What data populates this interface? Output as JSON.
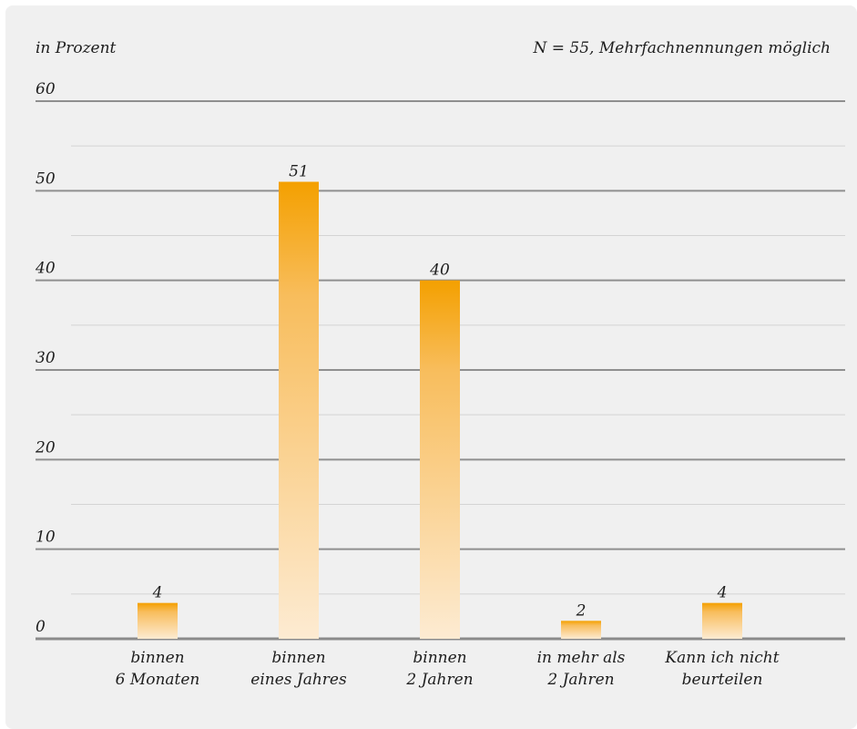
{
  "chart_data": {
    "type": "bar",
    "unit_label": "in Prozent",
    "note": "N = 55, Mehrfachnennungen möglich",
    "ylim": [
      0,
      60
    ],
    "yticks": [
      "0",
      "10",
      "20",
      "30",
      "40",
      "50",
      "60"
    ],
    "grid": true,
    "categories": [
      [
        "binnen",
        "6 Monaten"
      ],
      [
        "binnen",
        "eines Jahres"
      ],
      [
        "binnen",
        "2 Jahren"
      ],
      [
        "in mehr als",
        "2 Jahren"
      ],
      [
        "Kann ich nicht",
        "beurteilen"
      ]
    ],
    "values": [
      4,
      51,
      40,
      2,
      4
    ],
    "colors": {
      "bar_top": "#f4a000",
      "bar_bottom": "#fdebd2",
      "major_grid": "#8f8f8f",
      "minor_grid": "#d4d4d4",
      "axis": "#8a8a8a"
    }
  }
}
